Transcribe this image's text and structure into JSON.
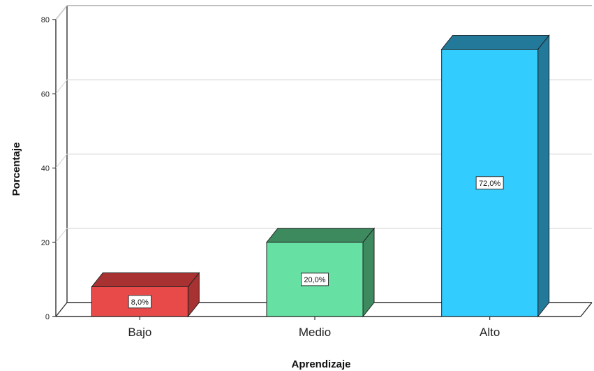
{
  "chart_data": {
    "type": "bar",
    "categories": [
      "Bajo",
      "Medio",
      "Alto"
    ],
    "values": [
      8.0,
      20.0,
      72.0
    ],
    "data_labels": [
      "8,0%",
      "20,0%",
      "72,0%"
    ],
    "xlabel": "Aprendizaje",
    "ylabel": "Porcentaje",
    "ylim": [
      0,
      80
    ],
    "yticks": [
      "0",
      "20",
      "40",
      "60",
      "80"
    ],
    "grid": true,
    "style": "3d",
    "bar_colors": [
      {
        "front": "#e84a4a",
        "top": "#a83232",
        "side": "#a83232"
      },
      {
        "front": "#66e0a3",
        "top": "#3d8a5f",
        "side": "#3d8a5f"
      },
      {
        "front": "#33ccff",
        "top": "#23799a",
        "side": "#23799a"
      }
    ]
  }
}
